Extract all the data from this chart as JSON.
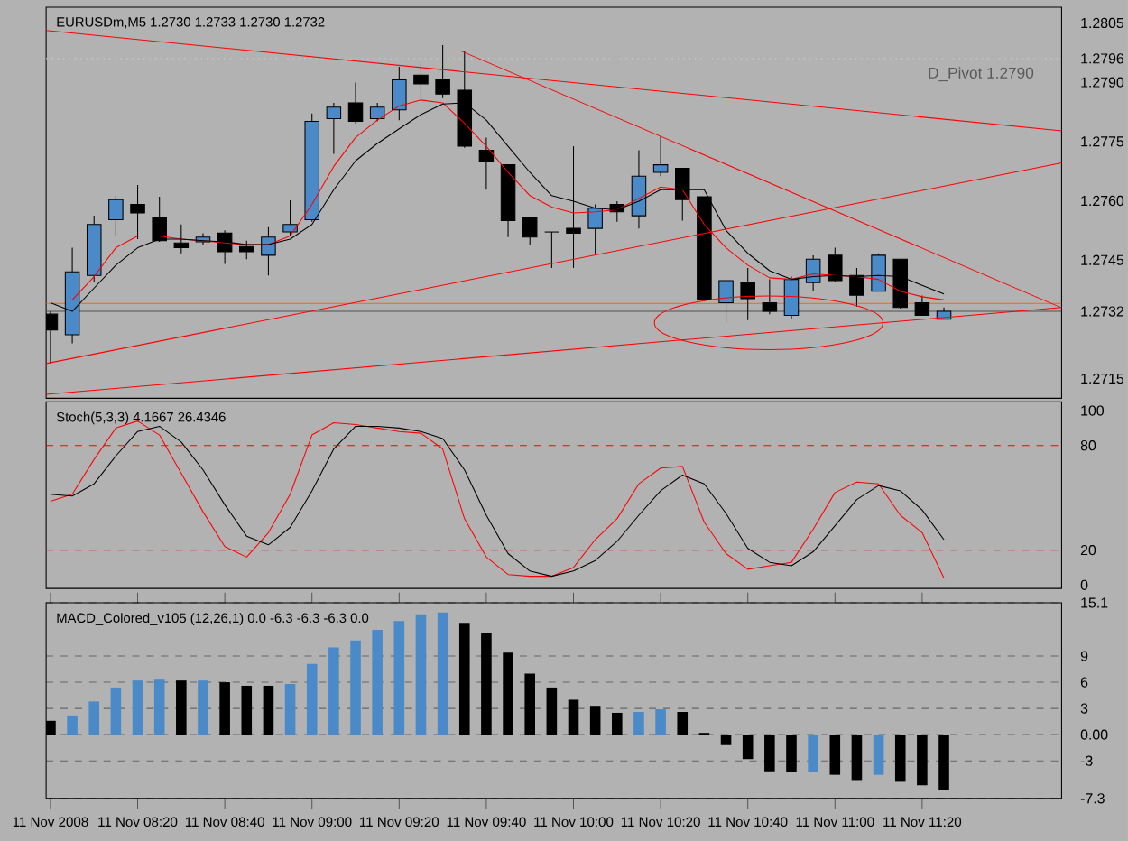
{
  "chart_data": [
    {
      "type": "candlestick",
      "title": "EURUSDm,M5  1.2730 1.2733 1.2730 1.2732",
      "tick_labels": "y",
      "x": [
        "2008-11-11T08:00",
        "2008-11-11T08:05",
        "2008-11-11T08:10",
        "2008-11-11T08:15",
        "2008-11-11T08:20",
        "2008-11-11T08:25",
        "2008-11-11T08:30",
        "2008-11-11T08:35",
        "2008-11-11T08:40",
        "2008-11-11T08:45",
        "2008-11-11T08:50",
        "2008-11-11T08:55",
        "2008-11-11T09:00",
        "2008-11-11T09:05",
        "2008-11-11T09:10",
        "2008-11-11T09:15",
        "2008-11-11T09:20",
        "2008-11-11T09:25",
        "2008-11-11T09:30",
        "2008-11-11T09:35",
        "2008-11-11T09:40",
        "2008-11-11T09:45",
        "2008-11-11T09:50",
        "2008-11-11T09:55",
        "2008-11-11T10:00",
        "2008-11-11T10:05",
        "2008-11-11T10:10",
        "2008-11-11T10:15",
        "2008-11-11T10:20",
        "2008-11-11T10:25",
        "2008-11-11T10:30",
        "2008-11-11T10:35",
        "2008-11-11T10:40",
        "2008-11-11T10:45",
        "2008-11-11T10:50",
        "2008-11-11T10:55",
        "2008-11-11T11:00",
        "2008-11-11T11:05",
        "2008-11-11T11:10",
        "2008-11-11T11:15",
        "2008-11-11T11:20",
        "2008-11-11T11:25"
      ],
      "ohlc": [
        [
          1.27313,
          1.2732,
          1.27188,
          1.27273
        ],
        [
          1.27261,
          1.27481,
          1.27239,
          1.2742
        ],
        [
          1.27411,
          1.27562,
          1.27393,
          1.2754
        ],
        [
          1.27552,
          1.27613,
          1.27511,
          1.27603
        ],
        [
          1.27591,
          1.2764,
          1.27503,
          1.27569
        ],
        [
          1.27559,
          1.2761,
          1.27496,
          1.27499
        ],
        [
          1.27493,
          1.2754,
          1.27467,
          1.27481
        ],
        [
          1.27496,
          1.27518,
          1.27489,
          1.27508
        ],
        [
          1.27518,
          1.27525,
          1.2744,
          1.27471
        ],
        [
          1.27484,
          1.27499,
          1.27452,
          1.27471
        ],
        [
          1.27462,
          1.27533,
          1.27411,
          1.27508
        ],
        [
          1.27521,
          1.27601,
          1.27511,
          1.2754
        ],
        [
          1.27552,
          1.27821,
          1.27547,
          1.27801
        ],
        [
          1.27808,
          1.27848,
          1.27719,
          1.27837
        ],
        [
          1.27848,
          1.27899,
          1.27796,
          1.27801
        ],
        [
          1.27808,
          1.27848,
          1.27801,
          1.27837
        ],
        [
          1.2783,
          1.27939,
          1.27804,
          1.27906
        ],
        [
          1.27918,
          1.27947,
          1.2786,
          1.27896
        ],
        [
          1.27906,
          1.27994,
          1.2786,
          1.2787
        ],
        [
          1.2788,
          1.2798,
          1.27734,
          1.27738
        ],
        [
          1.27728,
          1.2776,
          1.27628,
          1.27698
        ],
        [
          1.27691,
          1.27691,
          1.27508,
          1.2755
        ],
        [
          1.27559,
          1.27559,
          1.27489,
          1.27508
        ],
        [
          1.27521,
          1.27521,
          1.2743,
          1.27521
        ],
        [
          1.2753,
          1.27738,
          1.2743,
          1.27518
        ],
        [
          1.2753,
          1.27591,
          1.27464,
          1.27581
        ],
        [
          1.27591,
          1.27599,
          1.27547,
          1.27572
        ],
        [
          1.27562,
          1.27728,
          1.2753,
          1.27662
        ],
        [
          1.27672,
          1.27763,
          1.27662,
          1.27691
        ],
        [
          1.27682,
          1.27682,
          1.2755,
          1.27603
        ],
        [
          1.2761,
          1.2761,
          1.27346,
          1.27349
        ],
        [
          1.27342,
          1.27398,
          1.27291,
          1.27398
        ],
        [
          1.27393,
          1.2743,
          1.27298,
          1.27352
        ],
        [
          1.27342,
          1.27401,
          1.27313,
          1.2732
        ],
        [
          1.2731,
          1.27408,
          1.27301,
          1.27401
        ],
        [
          1.27393,
          1.27462,
          1.27371,
          1.27452
        ],
        [
          1.27462,
          1.27481,
          1.27393,
          1.27398
        ],
        [
          1.27411,
          1.2743,
          1.27332,
          1.27361
        ],
        [
          1.27371,
          1.27467,
          1.27371,
          1.27462
        ],
        [
          1.27452,
          1.27452,
          1.27327,
          1.2733
        ],
        [
          1.27342,
          1.2736,
          1.2731,
          1.2731
        ],
        [
          1.273,
          1.2733,
          1.273,
          1.2732
        ]
      ],
      "colors": [
        "#000000",
        "#4a8ac8",
        "#4a8ac8",
        "#4a8ac8",
        "#000000",
        "#000000",
        "#000000",
        "#4a8ac8",
        "#000000",
        "#000000",
        "#4a8ac8",
        "#4a8ac8",
        "#4a8ac8",
        "#4a8ac8",
        "#000000",
        "#4a8ac8",
        "#4a8ac8",
        "#000000",
        "#000000",
        "#000000",
        "#000000",
        "#000000",
        "#000000",
        "#000000",
        "#000000",
        "#4a8ac8",
        "#000000",
        "#4a8ac8",
        "#4a8ac8",
        "#000000",
        "#000000",
        "#4a8ac8",
        "#000000",
        "#000000",
        "#4a8ac8",
        "#4a8ac8",
        "#000000",
        "#000000",
        "#4a8ac8",
        "#000000",
        "#000000",
        "#4a8ac8"
      ],
      "series": [
        {
          "type": "line",
          "color": "#ff0000",
          "values": [
            null,
            1.27349,
            1.27408,
            1.27481,
            1.27511,
            1.27511,
            1.27503,
            1.27499,
            1.27493,
            1.27489,
            1.27489,
            1.27511,
            1.27591,
            1.27687,
            1.2776,
            1.27804,
            1.2784,
            1.27855,
            1.27848,
            1.27796,
            1.27738,
            1.27672,
            1.27613,
            1.27584,
            1.27569,
            1.27572,
            1.27577,
            1.27606,
            1.27635,
            1.27628,
            1.2754,
            1.27481,
            1.27437,
            1.27405,
            1.27401,
            1.27415,
            1.27411,
            1.27408,
            1.27401,
            1.27371,
            1.27357,
            1.27349
          ]
        },
        {
          "type": "line",
          "color": "#000000",
          "values": [
            1.27342,
            1.2732,
            1.27379,
            1.27437,
            1.27481,
            1.27503,
            1.27503,
            1.27499,
            1.27496,
            1.27489,
            1.27489,
            1.27503,
            1.2754,
            1.27628,
            1.27701,
            1.27745,
            1.27782,
            1.27818,
            1.27845,
            1.27848,
            1.27804,
            1.27738,
            1.27672,
            1.27613,
            1.27599,
            1.27581,
            1.27577,
            1.27599,
            1.27628,
            1.27628,
            1.27628,
            1.27525,
            1.27467,
            1.27423,
            1.27401,
            1.27408,
            1.27411,
            1.27408,
            1.27411,
            1.27408,
            1.27386,
            1.27364
          ]
        },
        {
          "type": "line",
          "color": "#ff0000",
          "x": [
            "2008-11-11T07:59",
            "2008-11-11T11:52"
          ],
          "values": [
            1.28031,
            1.27777
          ]
        },
        {
          "type": "line",
          "color": "#ff0000",
          "x": [
            "2008-11-11T09:34",
            "2008-11-11T11:52"
          ],
          "values": [
            1.2798,
            1.27329
          ]
        },
        {
          "type": "line",
          "color": "#ff0000",
          "x": [
            "2008-11-11T07:59",
            "2008-11-11T11:52"
          ],
          "values": [
            1.27188,
            1.27696
          ]
        },
        {
          "type": "line",
          "color": "#ff0000",
          "x": [
            "2008-11-11T07:59",
            "2008-11-11T11:52"
          ],
          "values": [
            1.2711,
            1.2733
          ]
        }
      ],
      "xlim": [
        "2008-11-11T07:59",
        "2008-11-11T11:52"
      ],
      "ylim": [
        1.271,
        1.2809
      ],
      "yticks": [
        1.2805,
        {
          "value": 1.2796,
          "label": "1.2796"
        },
        {
          "value": 1.279,
          "label": "1.2790"
        },
        1.2775,
        {
          "value": 1.276,
          "label": "1.2760"
        },
        1.2745,
        {
          "value": 1.2732,
          "label": "1.2732"
        },
        1.2715
      ],
      "ref_lines": [
        {
          "axis": "y",
          "value": 1.2796,
          "label": "D_Pivot 1.2790",
          "color": "#c4d4dc",
          "line_style": "dotted"
        },
        {
          "axis": "y",
          "value": 1.2734,
          "color": "#ff6000",
          "line_style": "solid"
        },
        {
          "axis": "y",
          "value": 1.2732,
          "color": "#505050",
          "line_style": "solid"
        }
      ],
      "marker": "none"
    },
    {
      "type": "line",
      "title": "Stoch(5,3,3) 4.1667 26.4346",
      "tick_labels": "y",
      "x": [
        "2008-11-11T08:00",
        "2008-11-11T08:05",
        "2008-11-11T08:10",
        "2008-11-11T08:15",
        "2008-11-11T08:20",
        "2008-11-11T08:25",
        "2008-11-11T08:30",
        "2008-11-11T08:35",
        "2008-11-11T08:40",
        "2008-11-11T08:45",
        "2008-11-11T08:50",
        "2008-11-11T08:55",
        "2008-11-11T09:00",
        "2008-11-11T09:05",
        "2008-11-11T09:10",
        "2008-11-11T09:15",
        "2008-11-11T09:20",
        "2008-11-11T09:25",
        "2008-11-11T09:30",
        "2008-11-11T09:35",
        "2008-11-11T09:40",
        "2008-11-11T09:45",
        "2008-11-11T09:50",
        "2008-11-11T09:55",
        "2008-11-11T10:00",
        "2008-11-11T10:05",
        "2008-11-11T10:10",
        "2008-11-11T10:15",
        "2008-11-11T10:20",
        "2008-11-11T10:25",
        "2008-11-11T10:30",
        "2008-11-11T10:35",
        "2008-11-11T10:40",
        "2008-11-11T10:45",
        "2008-11-11T10:50",
        "2008-11-11T10:55",
        "2008-11-11T11:00",
        "2008-11-11T11:05",
        "2008-11-11T11:10",
        "2008-11-11T11:15",
        "2008-11-11T11:20",
        "2008-11-11T11:25"
      ],
      "series": [
        {
          "color": "#ff0000",
          "values": [
            48,
            52,
            72,
            90,
            94,
            86,
            64,
            42,
            22,
            16,
            30,
            52,
            86,
            93,
            92,
            90,
            88,
            87,
            78,
            38,
            16,
            6,
            5,
            5,
            10,
            26,
            38,
            58,
            67,
            68,
            36,
            18,
            9,
            11,
            13,
            32,
            53,
            59,
            58,
            40,
            30,
            4
          ]
        },
        {
          "color": "#000000",
          "values": [
            52,
            51,
            58,
            74,
            88,
            91,
            82,
            66,
            46,
            28,
            23,
            33,
            54,
            78,
            91,
            91,
            90,
            88,
            84,
            66,
            40,
            18,
            8,
            5,
            8,
            14,
            25,
            40,
            54,
            63,
            58,
            41,
            21,
            13,
            11,
            19,
            34,
            49,
            57,
            54,
            43,
            26
          ]
        }
      ],
      "xlim": [
        "2008-11-11T07:59",
        "2008-11-11T11:52"
      ],
      "ylim": [
        -2,
        105
      ],
      "yticks": [
        0,
        20,
        80,
        100
      ],
      "ref_lines": [
        {
          "axis": "y",
          "value": 80,
          "color": "#ff0000",
          "line_style": "dashed"
        },
        {
          "axis": "y",
          "value": 20,
          "color": "#ff0000",
          "line_style": "dashed"
        }
      ],
      "marker": "none"
    },
    {
      "type": "bar",
      "title": "MACD_Colored_v105 (12,26,1) 0.0 -6.3 -6.3 -6.3 0.0",
      "x": [
        "2008-11-11T08:00",
        "2008-11-11T08:05",
        "2008-11-11T08:10",
        "2008-11-11T08:15",
        "2008-11-11T08:20",
        "2008-11-11T08:25",
        "2008-11-11T08:30",
        "2008-11-11T08:35",
        "2008-11-11T08:40",
        "2008-11-11T08:45",
        "2008-11-11T08:50",
        "2008-11-11T08:55",
        "2008-11-11T09:00",
        "2008-11-11T09:05",
        "2008-11-11T09:10",
        "2008-11-11T09:15",
        "2008-11-11T09:20",
        "2008-11-11T09:25",
        "2008-11-11T09:30",
        "2008-11-11T09:35",
        "2008-11-11T09:40",
        "2008-11-11T09:45",
        "2008-11-11T09:50",
        "2008-11-11T09:55",
        "2008-11-11T10:00",
        "2008-11-11T10:05",
        "2008-11-11T10:10",
        "2008-11-11T10:15",
        "2008-11-11T10:20",
        "2008-11-11T10:25",
        "2008-11-11T10:30",
        "2008-11-11T10:35",
        "2008-11-11T10:40",
        "2008-11-11T10:45",
        "2008-11-11T10:50",
        "2008-11-11T10:55",
        "2008-11-11T11:00",
        "2008-11-11T11:05",
        "2008-11-11T11:10",
        "2008-11-11T11:15",
        "2008-11-11T11:20",
        "2008-11-11T11:25"
      ],
      "values": [
        1.6,
        2.2,
        3.8,
        5.4,
        6.2,
        6.3,
        6.2,
        6.2,
        6.0,
        5.6,
        5.6,
        5.8,
        8.1,
        10.0,
        10.8,
        12.0,
        13.0,
        13.8,
        14.0,
        12.8,
        11.7,
        9.4,
        7.0,
        5.4,
        4.0,
        3.3,
        2.5,
        2.6,
        2.9,
        2.6,
        0.2,
        -1.2,
        -2.8,
        -4.2,
        -4.3,
        -4.3,
        -4.6,
        -5.2,
        -4.6,
        -5.4,
        -5.8,
        -6.3
      ],
      "colors": [
        "#000000",
        "#4a8ac8",
        "#4a8ac8",
        "#4a8ac8",
        "#4a8ac8",
        "#4a8ac8",
        "#000000",
        "#4a8ac8",
        "#000000",
        "#000000",
        "#000000",
        "#4a8ac8",
        "#4a8ac8",
        "#4a8ac8",
        "#4a8ac8",
        "#4a8ac8",
        "#4a8ac8",
        "#4a8ac8",
        "#4a8ac8",
        "#000000",
        "#000000",
        "#000000",
        "#000000",
        "#000000",
        "#000000",
        "#000000",
        "#000000",
        "#4a8ac8",
        "#4a8ac8",
        "#000000",
        "#000000",
        "#000000",
        "#000000",
        "#000000",
        "#000000",
        "#4a8ac8",
        "#000000",
        "#000000",
        "#4a8ac8",
        "#000000",
        "#000000",
        "#000000"
      ],
      "xlim": [
        "2008-11-11T07:59",
        "2008-11-11T11:52"
      ],
      "ylim": [
        -7.3,
        15.1
      ],
      "yticks": [
        15.1,
        9,
        6,
        3,
        {
          "value": 0,
          "label": "0.00"
        },
        -3,
        -7.3
      ],
      "xticks": [
        {
          "value": "2008-11-11T08:00",
          "label": "11 Nov 2008"
        },
        {
          "value": "2008-11-11T08:20",
          "label": "11 Nov 08:20"
        },
        {
          "value": "2008-11-11T08:40",
          "label": "11 Nov 08:40"
        },
        {
          "value": "2008-11-11T09:00",
          "label": "11 Nov 09:00"
        },
        {
          "value": "2008-11-11T09:20",
          "label": "11 Nov 09:20"
        },
        {
          "value": "2008-11-11T09:40",
          "label": "11 Nov 09:40"
        },
        {
          "value": "2008-11-11T10:00",
          "label": "11 Nov 10:00"
        },
        {
          "value": "2008-11-11T10:20",
          "label": "11 Nov 10:20"
        },
        {
          "value": "2008-11-11T10:40",
          "label": "11 Nov 10:40"
        },
        {
          "value": "2008-11-11T11:00",
          "label": "11 Nov 11:00"
        },
        {
          "value": "2008-11-11T11:20",
          "label": "11 Nov 11:20"
        }
      ],
      "grid": "y"
    }
  ]
}
